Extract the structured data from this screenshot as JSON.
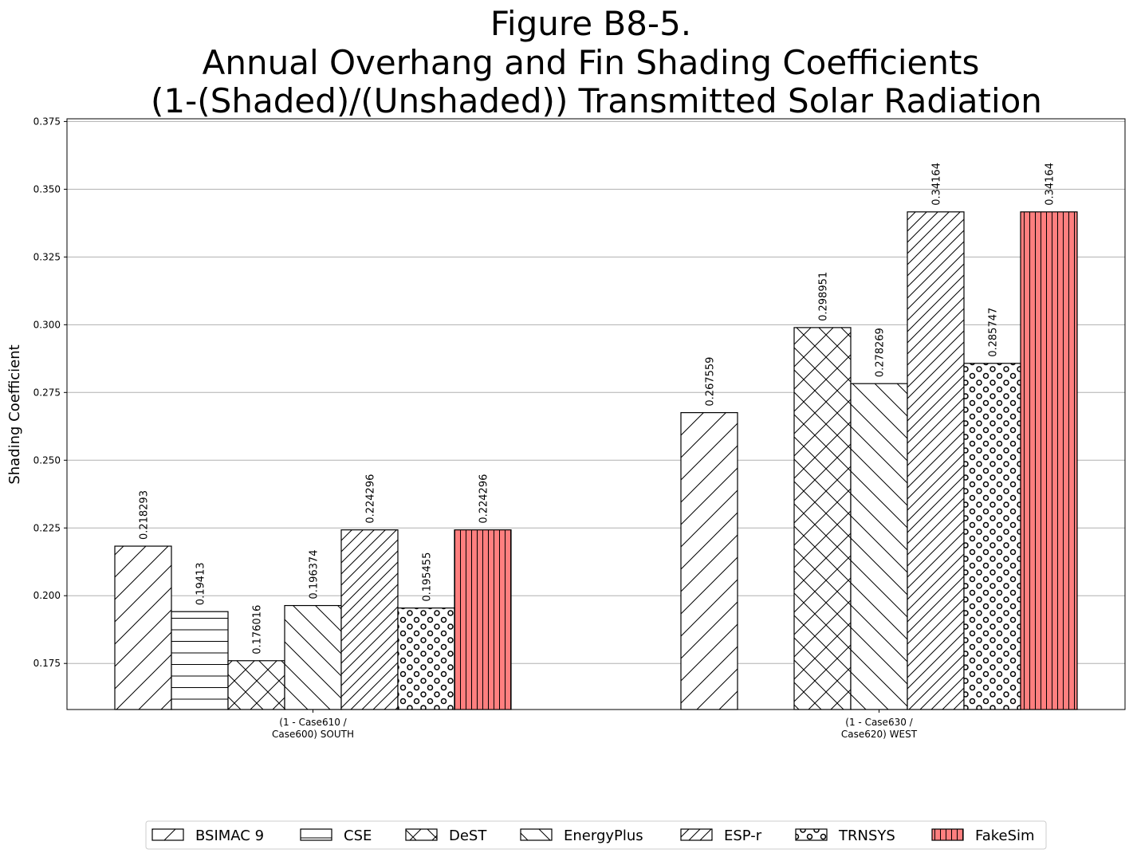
{
  "chart_data": {
    "type": "bar",
    "title_lines": [
      "Figure B8-5.",
      "Annual Overhang and Fin Shading Coefficients",
      "(1-(Shaded)/(Unshaded)) Transmitted Solar Radiation"
    ],
    "ylabel": "Shading Coefficient",
    "xlabel": "",
    "ylim": [
      0.158,
      0.376
    ],
    "yticks": [
      "0.175",
      "0.200",
      "0.225",
      "0.250",
      "0.275",
      "0.300",
      "0.325",
      "0.350",
      "0.375"
    ],
    "grid": "y-major",
    "legend_position": "bottom-center",
    "categories": [
      [
        "(1 - Case610 /",
        "Case600) SOUTH"
      ],
      [
        "(1 - Case630 /",
        "Case620) WEST"
      ]
    ],
    "series": [
      {
        "name": "BSIMAC 9",
        "hatch": "diag-forward",
        "color": "#ffffff",
        "values": [
          0.218293,
          0.267559
        ],
        "labels": [
          "0.218293",
          "0.267559"
        ]
      },
      {
        "name": "CSE",
        "hatch": "horizontal",
        "color": "#ffffff",
        "values": [
          0.19413,
          null
        ],
        "labels": [
          "0.19413",
          ""
        ]
      },
      {
        "name": "DeST",
        "hatch": "cross",
        "color": "#ffffff",
        "values": [
          0.176016,
          0.298951
        ],
        "labels": [
          "0.176016",
          "0.298951"
        ]
      },
      {
        "name": "EnergyPlus",
        "hatch": "diag-back",
        "color": "#ffffff",
        "values": [
          0.196374,
          0.278269
        ],
        "labels": [
          "0.196374",
          "0.278269"
        ]
      },
      {
        "name": "ESP-r",
        "hatch": "diag-forward-dense",
        "color": "#ffffff",
        "values": [
          0.224296,
          0.34164
        ],
        "labels": [
          "0.224296",
          "0.34164"
        ]
      },
      {
        "name": "TRNSYS",
        "hatch": "circles",
        "color": "#ffffff",
        "values": [
          0.195455,
          0.285747
        ],
        "labels": [
          "0.195455",
          "0.285747"
        ]
      },
      {
        "name": "FakeSim",
        "hatch": "vertical",
        "color": "#ff7f7f",
        "values": [
          0.224296,
          0.34164
        ],
        "labels": [
          "0.224296",
          "0.34164"
        ]
      }
    ]
  }
}
